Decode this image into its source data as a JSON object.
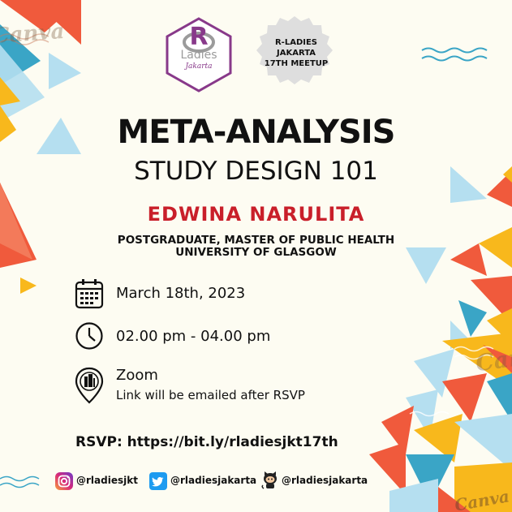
{
  "logo": {
    "letter": "R",
    "word": "Ladies",
    "chapter": "Jakarta"
  },
  "badge": {
    "line1": "R-LADIES",
    "line2": "JAKARTA",
    "line3": "17TH MEETUP"
  },
  "title": {
    "main": "META-ANALYSIS",
    "sub": "STUDY DESIGN 101"
  },
  "speaker": {
    "name": "EDWINA NARULITA",
    "affiliation_line1": "POSTGRADUATE, MASTER OF PUBLIC HEALTH",
    "affiliation_line2": "UNIVERSITY OF GLASGOW"
  },
  "event": {
    "date": "March 18th, 2023",
    "time": "02.00 pm - 04.00 pm",
    "venue": "Zoom",
    "venue_note": "Link will be emailed after RSVP",
    "icons": [
      "calendar-icon",
      "clock-icon",
      "location-pin-icon"
    ]
  },
  "rsvp": {
    "text": "RSVP: https://bit.ly/rladiesjkt17th"
  },
  "socials": [
    {
      "platform_icon": "instagram-icon",
      "handle": "@rladiesjkt"
    },
    {
      "platform_icon": "twitter-icon",
      "handle": "@rladiesjakarta"
    },
    {
      "platform_icon": "github-icon",
      "handle": "@rladiesjakarta"
    }
  ],
  "watermark": {
    "text": "Canva"
  },
  "colors": {
    "background": "#fdfcf2",
    "speaker_red": "#c91f2a",
    "logo_purple": "#88398a",
    "orange": "#f05a3c",
    "yellow": "#f8b81c",
    "light_blue": "#b5dff0",
    "teal": "#3aa5c6"
  }
}
